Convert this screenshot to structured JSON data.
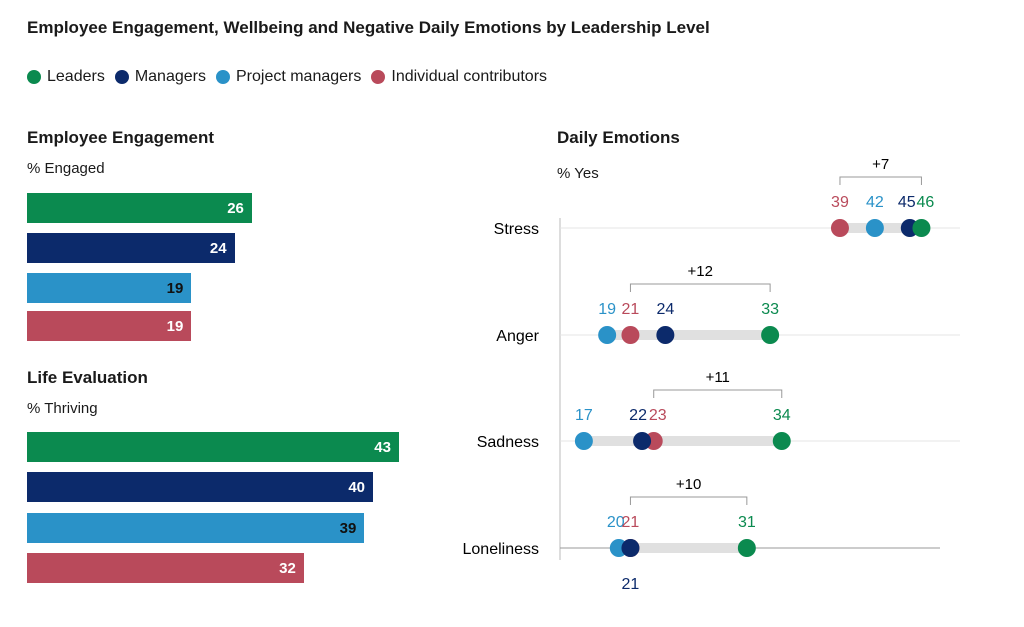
{
  "title": "Employee Engagement, Wellbeing and Negative Daily Emotions by Leadership Level",
  "colors": {
    "Leaders": "#0b8a4f",
    "Managers": "#0c2a6b",
    "Project managers": "#2a92c8",
    "Individual contributors": "#b94a5b"
  },
  "legend": [
    "Leaders",
    "Managers",
    "Project managers",
    "Individual contributors"
  ],
  "chart_data": [
    {
      "type": "bar",
      "title": "Employee Engagement",
      "ylabel": "% Engaged",
      "categories": [
        "Leaders",
        "Managers",
        "Project managers",
        "Individual contributors"
      ],
      "values": [
        26,
        24,
        19,
        19
      ]
    },
    {
      "type": "bar",
      "title": "Life Evaluation",
      "ylabel": "% Thriving",
      "categories": [
        "Leaders",
        "Managers",
        "Project managers",
        "Individual contributors"
      ],
      "values": [
        43,
        40,
        39,
        32
      ]
    },
    {
      "type": "dot",
      "title": "Daily Emotions",
      "ylabel": "% Yes",
      "categories": [
        "Stress",
        "Anger",
        "Sadness",
        "Loneliness"
      ],
      "series": [
        {
          "name": "Leaders",
          "values": [
            46,
            33,
            34,
            31
          ]
        },
        {
          "name": "Managers",
          "values": [
            45,
            24,
            22,
            21
          ]
        },
        {
          "name": "Project managers",
          "values": [
            42,
            19,
            17,
            20
          ]
        },
        {
          "name": "Individual contributors",
          "values": [
            39,
            21,
            23,
            21
          ]
        }
      ],
      "gaps": [
        "+7",
        "+12",
        "+11",
        "+10"
      ]
    }
  ]
}
